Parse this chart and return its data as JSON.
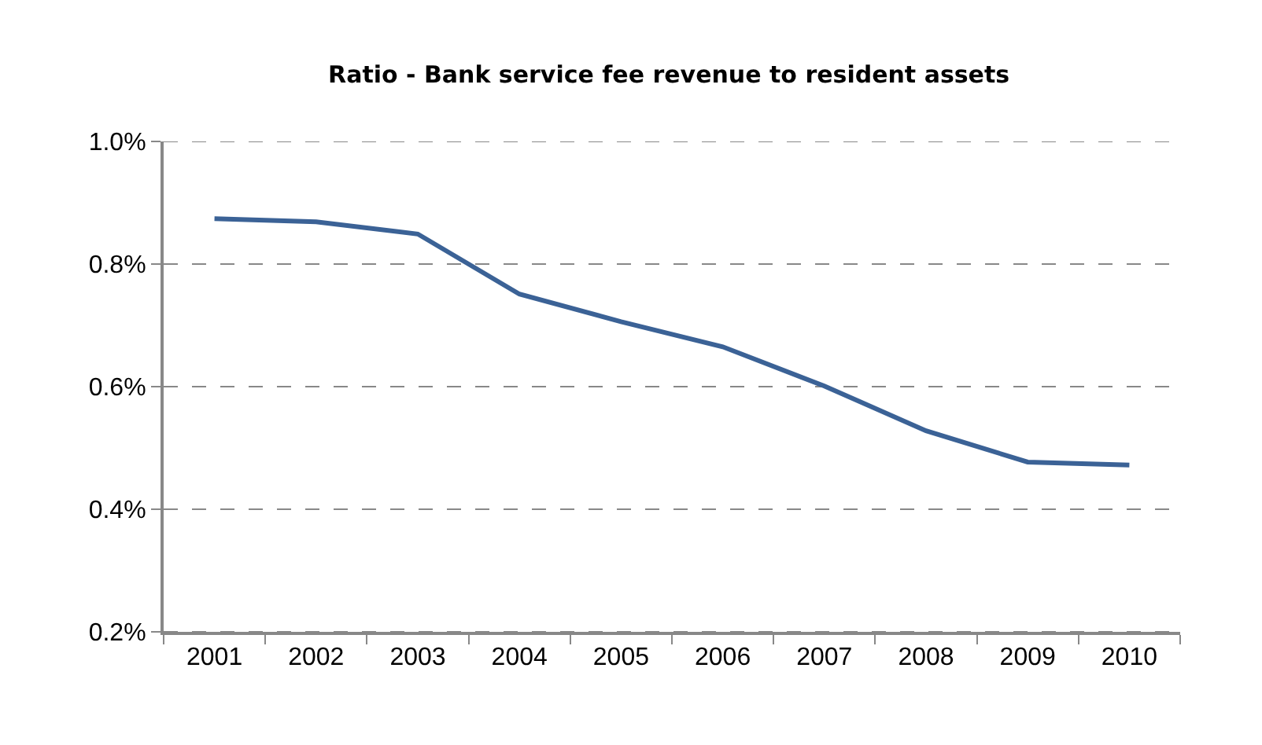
{
  "chart_data": {
    "type": "line",
    "title": "Ratio - Bank service fee revenue to resident assets",
    "categories": [
      "2001",
      "2002",
      "2003",
      "2004",
      "2005",
      "2006",
      "2007",
      "2008",
      "2009",
      "2010"
    ],
    "series": [
      {
        "color": "#3b6296",
        "values": [
          0.874,
          0.869,
          0.849,
          0.751,
          0.706,
          0.665,
          0.601,
          0.528,
          0.477,
          0.472
        ]
      }
    ],
    "ylim": [
      0.2,
      1.0
    ],
    "yticks": [
      {
        "value": 0.2,
        "label": "0.2%"
      },
      {
        "value": 0.4,
        "label": "0.4%"
      },
      {
        "value": 0.6,
        "label": "0.6%"
      },
      {
        "value": 0.8,
        "label": "0.8%"
      },
      {
        "value": 1.0,
        "label": "1.0%"
      }
    ],
    "grid": "y",
    "marker": "none",
    "line_style": "solid"
  }
}
